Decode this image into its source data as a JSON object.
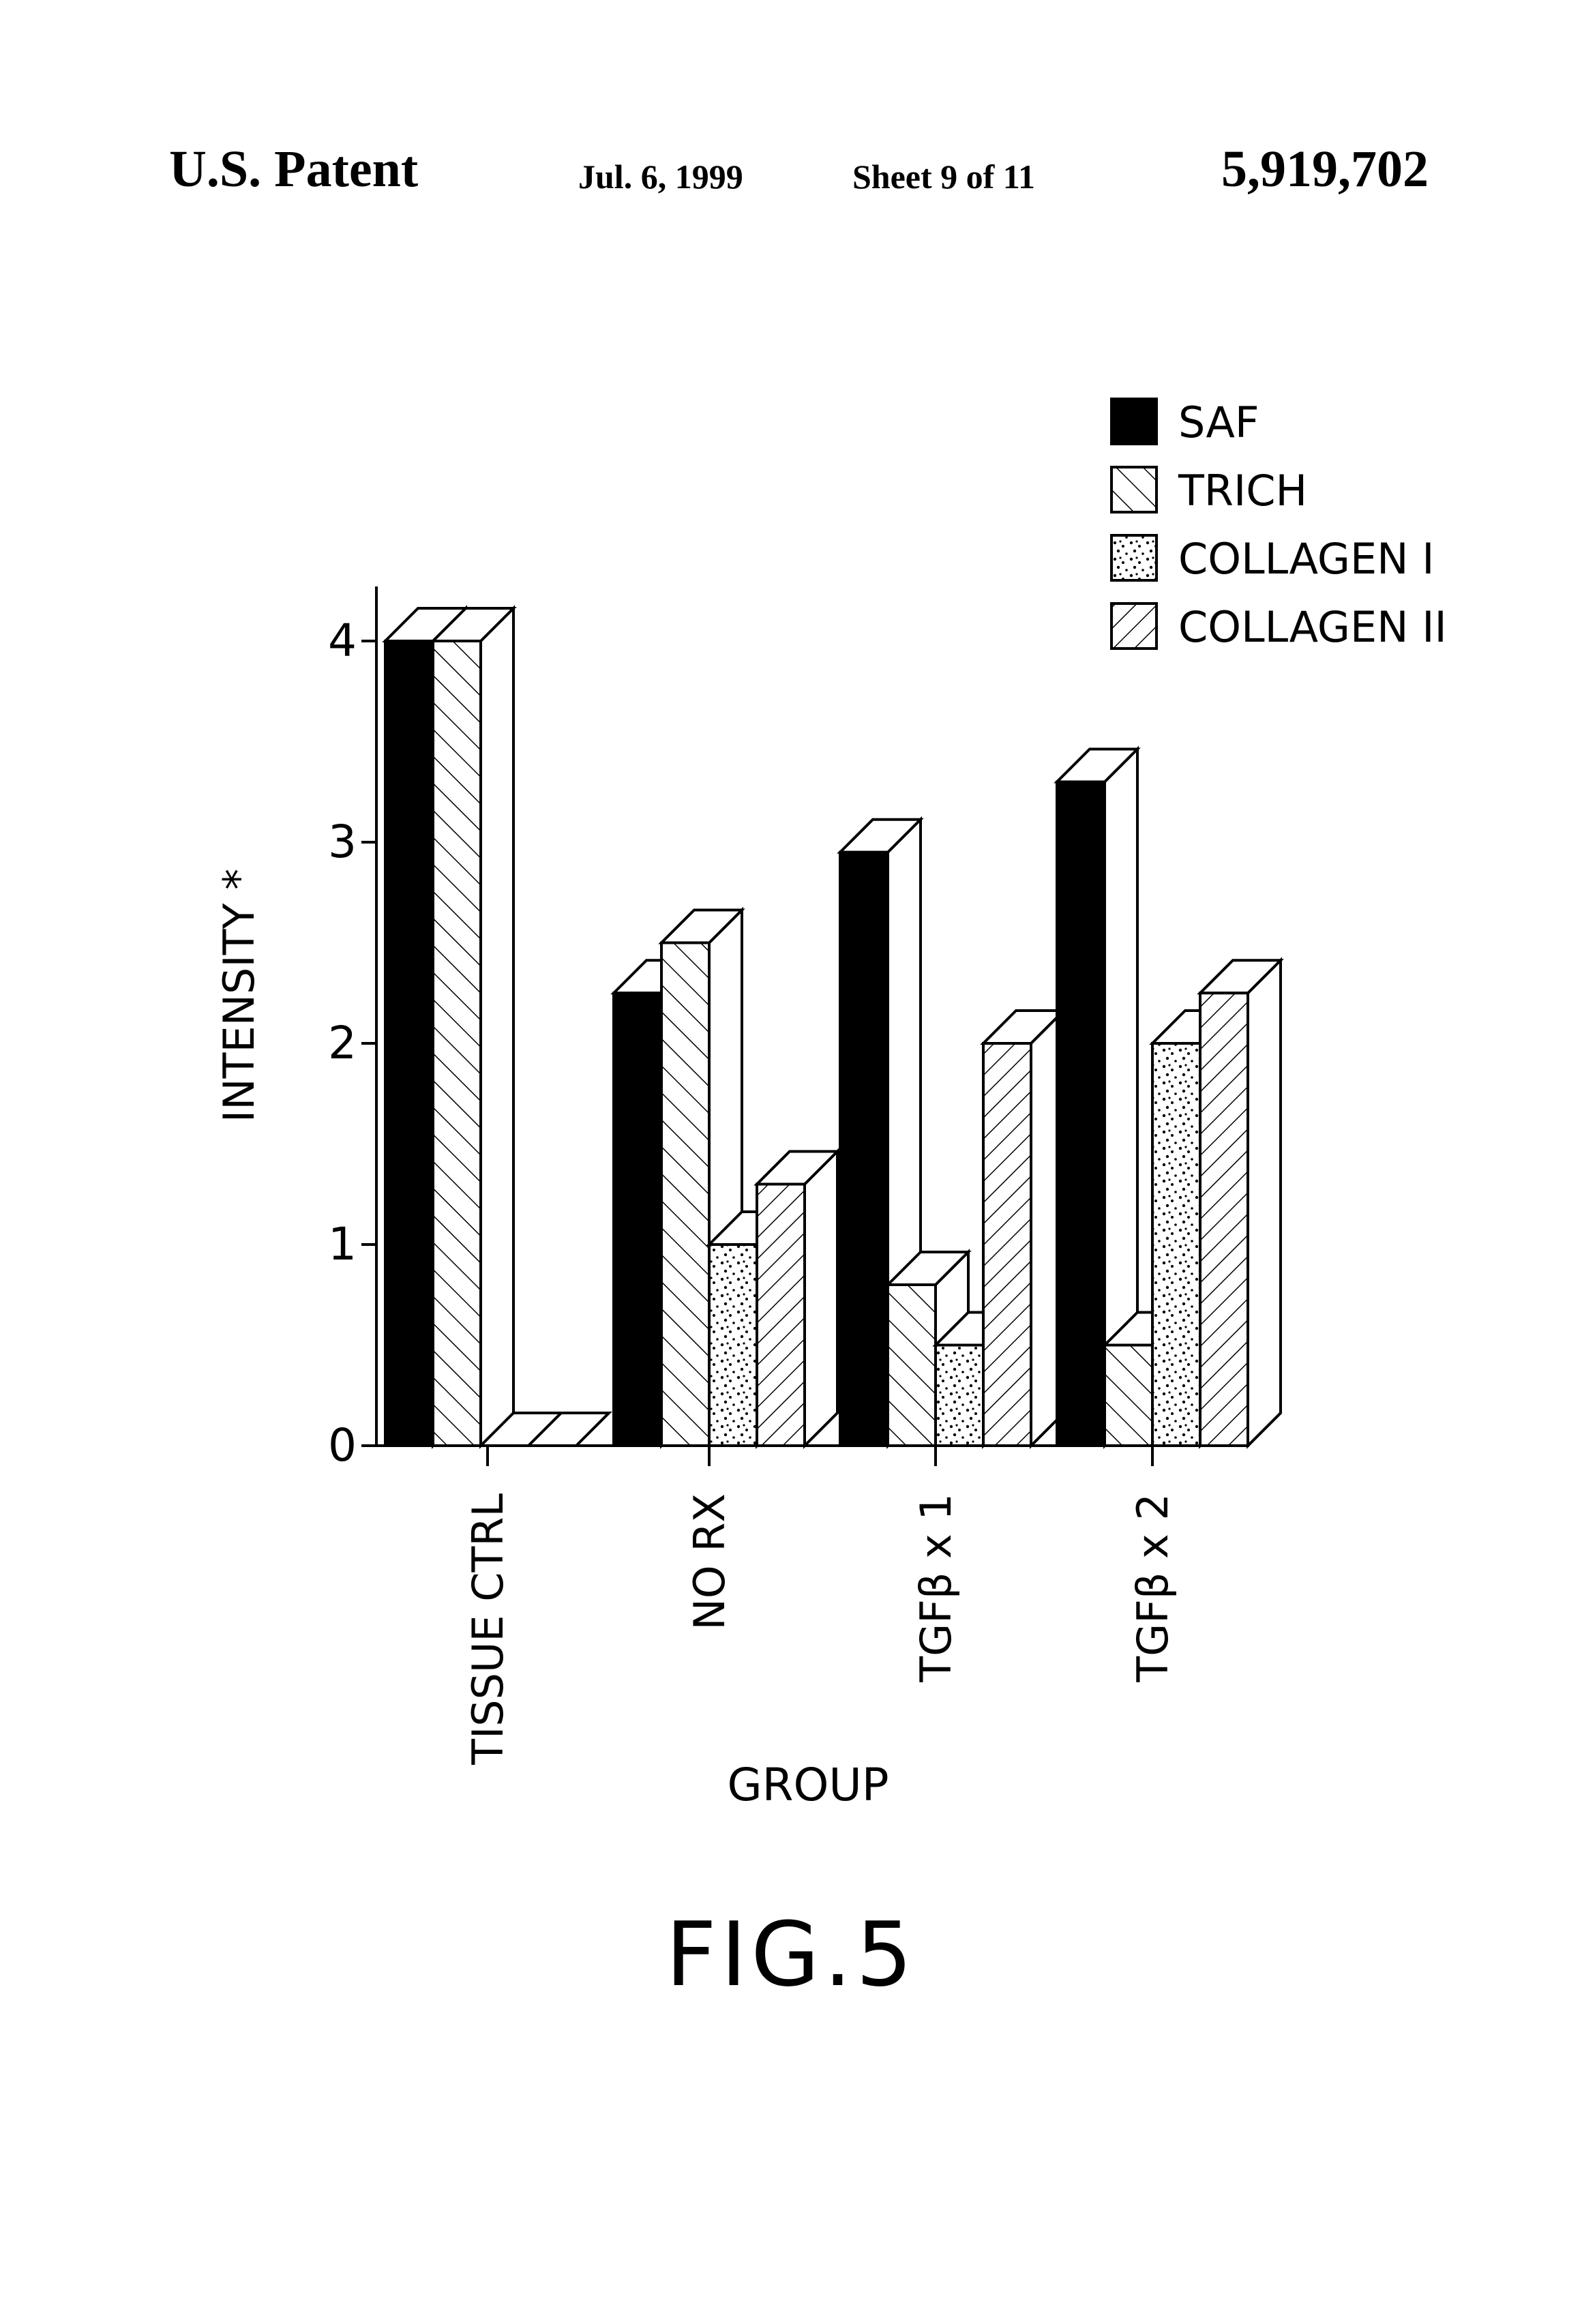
{
  "header": {
    "left": "U.S. Patent",
    "date": "Jul. 6, 1999",
    "sheet": "Sheet 9 of 11",
    "number": "5,919,702"
  },
  "figure_label": "FIG.5",
  "colors": {
    "ink": "#000000",
    "paper": "#ffffff"
  },
  "chart_data": {
    "type": "bar",
    "title": "",
    "xlabel": "GROUP",
    "ylabel": "INTENSITY *",
    "ylim": [
      0,
      4
    ],
    "yticks": [
      0,
      1,
      2,
      3,
      4
    ],
    "categories": [
      "TISSUE CTRL",
      "NO RX",
      "TGFβ x 1",
      "TGFβ x 2"
    ],
    "legend_position": "top-right",
    "series": [
      {
        "name": "SAF",
        "pattern": "solid",
        "values": [
          4.0,
          2.25,
          2.95,
          3.3
        ]
      },
      {
        "name": "TRICH",
        "pattern": "hatch-forward",
        "values": [
          4.0,
          2.5,
          0.8,
          0.5
        ]
      },
      {
        "name": "COLLAGEN I",
        "pattern": "dots",
        "values": [
          0,
          1.0,
          0.5,
          2.0
        ]
      },
      {
        "name": "COLLAGEN II",
        "pattern": "hatch-back",
        "values": [
          0,
          1.3,
          2.0,
          2.25
        ]
      }
    ]
  }
}
